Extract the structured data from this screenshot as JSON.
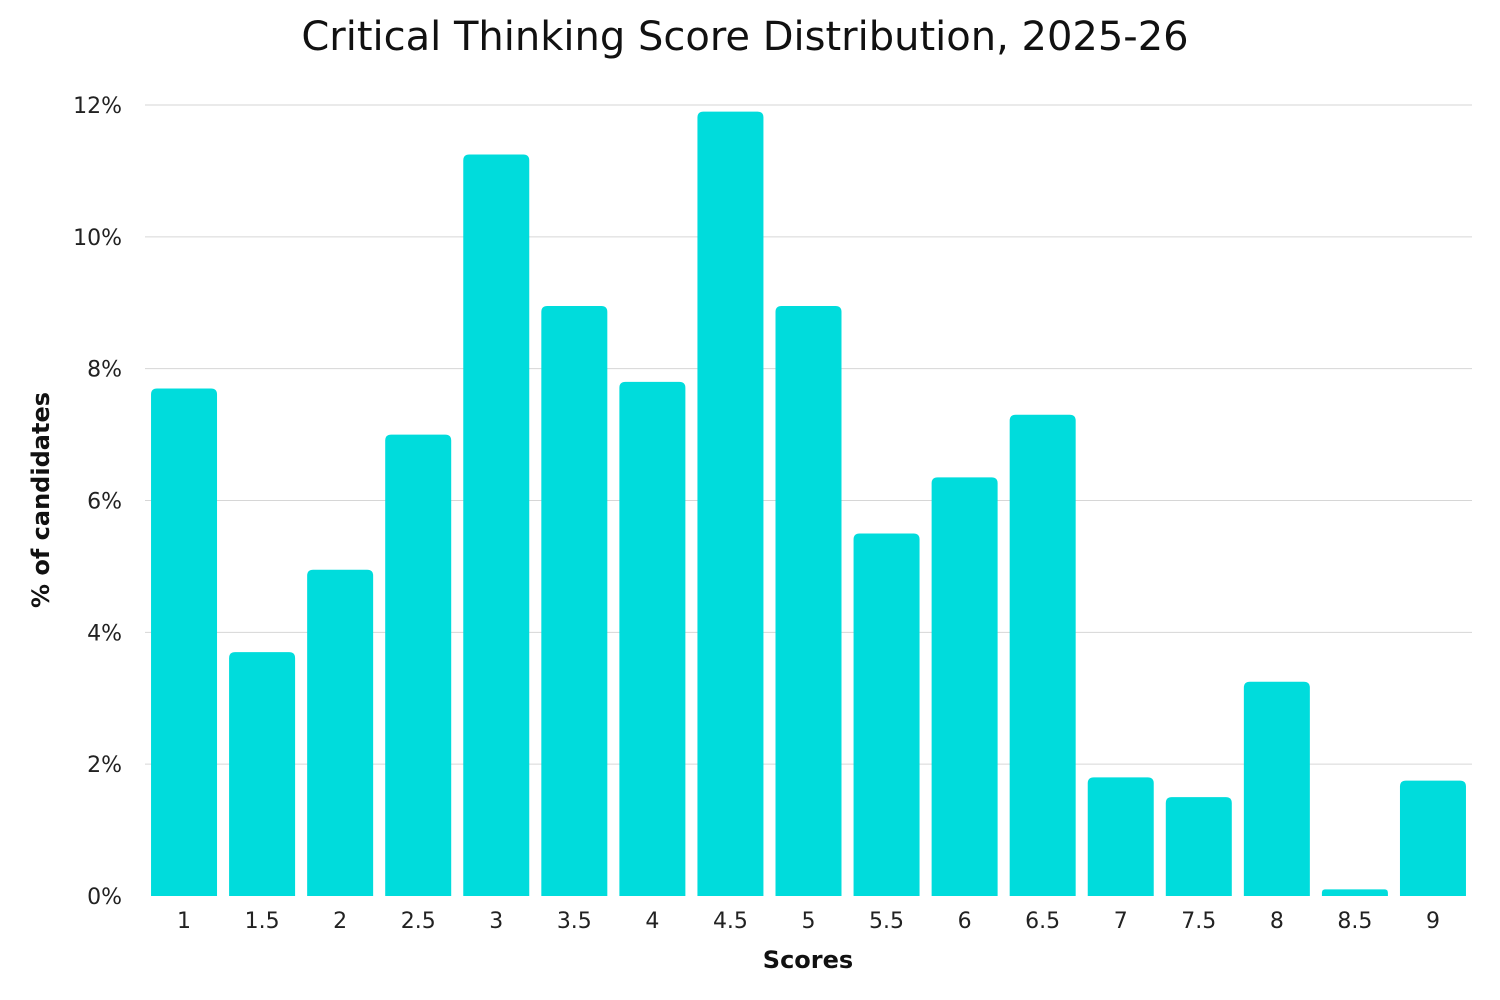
{
  "chart_data": {
    "type": "bar",
    "title": "Critical Thinking Score Distribution, 2025-26",
    "xlabel": "Scores",
    "ylabel": "% of candidates",
    "categories": [
      "1",
      "1.5",
      "2",
      "2.5",
      "3",
      "3.5",
      "4",
      "4.5",
      "5",
      "5.5",
      "6",
      "6.5",
      "7",
      "7.5",
      "8",
      "8.5",
      "9"
    ],
    "values": [
      7.7,
      3.7,
      4.95,
      7.0,
      11.25,
      8.95,
      7.8,
      11.9,
      8.95,
      5.5,
      6.35,
      7.3,
      1.8,
      1.5,
      3.25,
      0.1,
      1.75
    ],
    "value_format": "percent",
    "ylim": [
      0,
      12
    ],
    "yticks": [
      "0%",
      "2%",
      "4%",
      "6%",
      "8%",
      "10%",
      "12%"
    ],
    "grid": true,
    "bar_color": "#00dcdc",
    "grid_color": "#d6d6d6"
  }
}
